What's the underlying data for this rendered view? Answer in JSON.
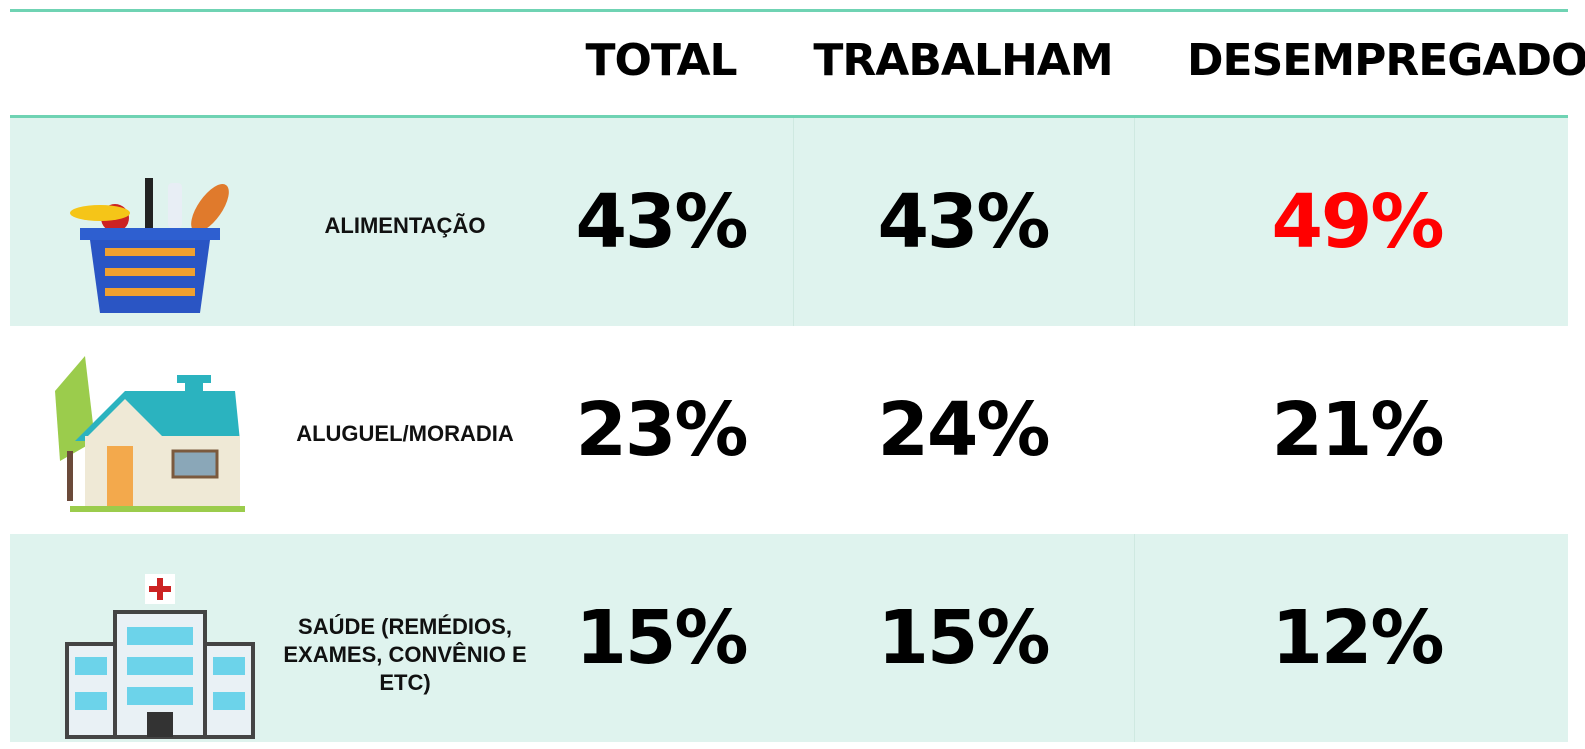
{
  "table": {
    "header": [
      "TOTAL",
      "TRABALHAM",
      "DESEMPREGADOS"
    ],
    "rows": [
      {
        "label": "ALIMENTAÇÃO",
        "cells": [
          "43%",
          "43%",
          "49%"
        ]
      },
      {
        "label": "ALUGUEL/MORADIA",
        "cells": [
          "23%",
          "24%",
          "21%"
        ]
      },
      {
        "label": "SAÚDE (REMÉDIOS, EXAMES, CONVÊNIO E ETC)",
        "cells": [
          "15%",
          "15%",
          "12%"
        ]
      }
    ]
  }
}
